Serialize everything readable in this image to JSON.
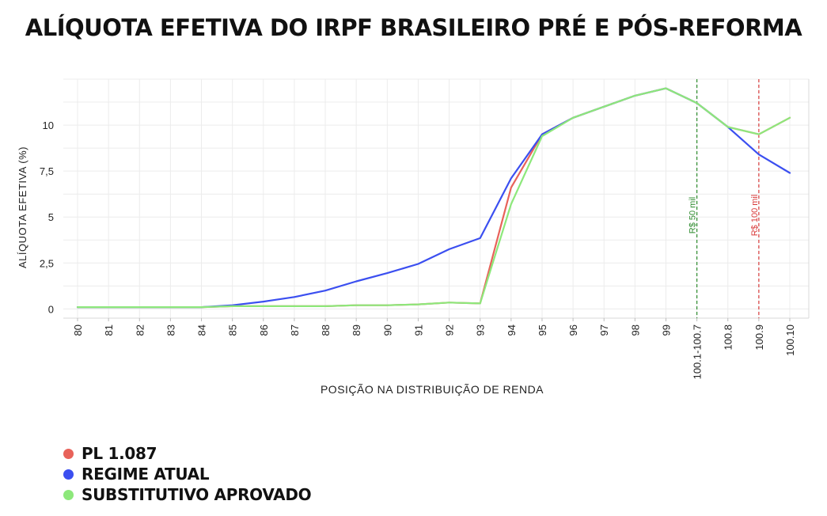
{
  "title": "ALÍQUOTA EFETIVA DO IRPF BRASILEIRO PRÉ E PÓS-REFORMA",
  "chart_data": {
    "type": "line",
    "title": "ALÍQUOTA EFETIVA DO IRPF BRASILEIRO PRÉ E PÓS-REFORMA",
    "xlabel": "POSIÇÃO NA DISTRIBUIÇÃO DE RENDA",
    "ylabel": "ALÍQUOTA EFETIVA (%)",
    "categories": [
      "80",
      "81",
      "82",
      "83",
      "84",
      "85",
      "86",
      "87",
      "88",
      "89",
      "90",
      "91",
      "92",
      "93",
      "94",
      "95",
      "96",
      "97",
      "98",
      "99",
      "100.1-100.7",
      "100.8",
      "100.9",
      "100.10"
    ],
    "ylim": [
      -0.5,
      12.5
    ],
    "yticks": [
      0,
      2.5,
      5,
      7.5,
      10
    ],
    "ytick_labels": [
      "0",
      "2,5",
      "5",
      "7,5",
      "10"
    ],
    "grid": true,
    "series": [
      {
        "name": "PL 1.087",
        "color": "#e8625a",
        "values": [
          0.1,
          0.1,
          0.1,
          0.1,
          0.1,
          0.15,
          0.15,
          0.15,
          0.15,
          0.2,
          0.2,
          0.25,
          0.35,
          0.3,
          6.6,
          9.5,
          10.4,
          11.0,
          11.6,
          12.0,
          11.2,
          9.9,
          9.5,
          10.4
        ]
      },
      {
        "name": "REGIME ATUAL",
        "color": "#3b4ff0",
        "values": [
          0.1,
          0.1,
          0.1,
          0.1,
          0.1,
          0.2,
          0.4,
          0.65,
          1.0,
          1.5,
          1.95,
          2.45,
          3.25,
          3.85,
          7.1,
          9.5,
          10.4,
          11.0,
          11.6,
          12.0,
          11.2,
          9.9,
          8.4,
          7.4
        ]
      },
      {
        "name": "SUBSTITUTIVO APROVADO",
        "color": "#8de87b",
        "values": [
          0.1,
          0.1,
          0.1,
          0.1,
          0.1,
          0.15,
          0.15,
          0.15,
          0.15,
          0.2,
          0.2,
          0.25,
          0.35,
          0.3,
          5.7,
          9.4,
          10.4,
          11.0,
          11.6,
          12.0,
          11.2,
          9.9,
          9.5,
          10.4
        ]
      }
    ],
    "annotations": [
      {
        "label": "R$ 50 mil",
        "x_category": "100.1-100.7",
        "color": "#2e8b2e"
      },
      {
        "label": "R$ 100 mil",
        "x_category": "100.9",
        "color": "#d83a3a"
      }
    ],
    "legend_position": "bottom-left"
  },
  "legend": [
    {
      "label": "PL 1.087",
      "color": "#e8625a"
    },
    {
      "label": "REGIME ATUAL",
      "color": "#3b4ff0"
    },
    {
      "label": "SUBSTITUTIVO APROVADO",
      "color": "#8de87b"
    }
  ]
}
